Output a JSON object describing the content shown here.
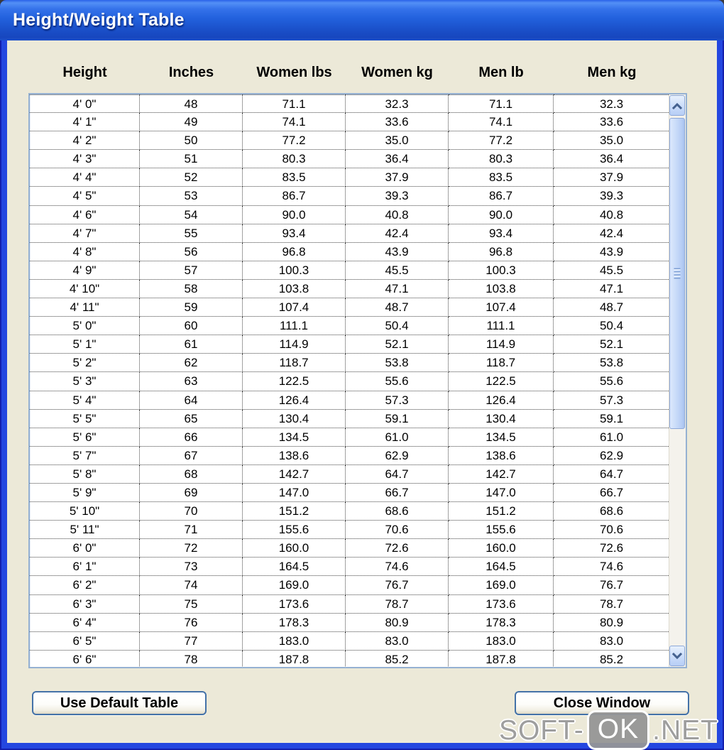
{
  "window": {
    "title": "Height/Weight Table"
  },
  "table": {
    "headers": [
      "Height",
      "Inches",
      "Women lbs",
      "Women kg",
      "Men lb",
      "Men kg"
    ],
    "rows": [
      [
        "4' 0\"",
        "48",
        "71.1",
        "32.3",
        "71.1",
        "32.3"
      ],
      [
        "4' 1\"",
        "49",
        "74.1",
        "33.6",
        "74.1",
        "33.6"
      ],
      [
        "4' 2\"",
        "50",
        "77.2",
        "35.0",
        "77.2",
        "35.0"
      ],
      [
        "4' 3\"",
        "51",
        "80.3",
        "36.4",
        "80.3",
        "36.4"
      ],
      [
        "4' 4\"",
        "52",
        "83.5",
        "37.9",
        "83.5",
        "37.9"
      ],
      [
        "4' 5\"",
        "53",
        "86.7",
        "39.3",
        "86.7",
        "39.3"
      ],
      [
        "4' 6\"",
        "54",
        "90.0",
        "40.8",
        "90.0",
        "40.8"
      ],
      [
        "4' 7\"",
        "55",
        "93.4",
        "42.4",
        "93.4",
        "42.4"
      ],
      [
        "4' 8\"",
        "56",
        "96.8",
        "43.9",
        "96.8",
        "43.9"
      ],
      [
        "4' 9\"",
        "57",
        "100.3",
        "45.5",
        "100.3",
        "45.5"
      ],
      [
        "4' 10\"",
        "58",
        "103.8",
        "47.1",
        "103.8",
        "47.1"
      ],
      [
        "4' 11\"",
        "59",
        "107.4",
        "48.7",
        "107.4",
        "48.7"
      ],
      [
        "5' 0\"",
        "60",
        "111.1",
        "50.4",
        "111.1",
        "50.4"
      ],
      [
        "5' 1\"",
        "61",
        "114.9",
        "52.1",
        "114.9",
        "52.1"
      ],
      [
        "5' 2\"",
        "62",
        "118.7",
        "53.8",
        "118.7",
        "53.8"
      ],
      [
        "5' 3\"",
        "63",
        "122.5",
        "55.6",
        "122.5",
        "55.6"
      ],
      [
        "5' 4\"",
        "64",
        "126.4",
        "57.3",
        "126.4",
        "57.3"
      ],
      [
        "5' 5\"",
        "65",
        "130.4",
        "59.1",
        "130.4",
        "59.1"
      ],
      [
        "5' 6\"",
        "66",
        "134.5",
        "61.0",
        "134.5",
        "61.0"
      ],
      [
        "5' 7\"",
        "67",
        "138.6",
        "62.9",
        "138.6",
        "62.9"
      ],
      [
        "5' 8\"",
        "68",
        "142.7",
        "64.7",
        "142.7",
        "64.7"
      ],
      [
        "5' 9\"",
        "69",
        "147.0",
        "66.7",
        "147.0",
        "66.7"
      ],
      [
        "5' 10\"",
        "70",
        "151.2",
        "68.6",
        "151.2",
        "68.6"
      ],
      [
        "5' 11\"",
        "71",
        "155.6",
        "70.6",
        "155.6",
        "70.6"
      ],
      [
        "6' 0\"",
        "72",
        "160.0",
        "72.6",
        "160.0",
        "72.6"
      ],
      [
        "6' 1\"",
        "73",
        "164.5",
        "74.6",
        "164.5",
        "74.6"
      ],
      [
        "6' 2\"",
        "74",
        "169.0",
        "76.7",
        "169.0",
        "76.7"
      ],
      [
        "6' 3\"",
        "75",
        "173.6",
        "78.7",
        "173.6",
        "78.7"
      ],
      [
        "6' 4\"",
        "76",
        "178.3",
        "80.9",
        "178.3",
        "80.9"
      ],
      [
        "6' 5\"",
        "77",
        "183.0",
        "83.0",
        "183.0",
        "83.0"
      ],
      [
        "6' 6\"",
        "78",
        "187.8",
        "85.2",
        "187.8",
        "85.2"
      ]
    ]
  },
  "buttons": {
    "use_default": "Use Default Table",
    "close": "Close Window"
  },
  "watermark": {
    "prefix": "SOFT-",
    "badge": "OK",
    "suffix": ".NET"
  },
  "icons": {
    "scroll_up": "chevron-up",
    "scroll_down": "chevron-down"
  },
  "colors": {
    "frame_blue": "#2447E0",
    "titlebar_blue": "#2261DD",
    "dialog_bg": "#ECE9D8",
    "button_border": "#4472A8",
    "listbox_border": "#95B1D2",
    "watermark_gray": "#9E9E9E"
  }
}
